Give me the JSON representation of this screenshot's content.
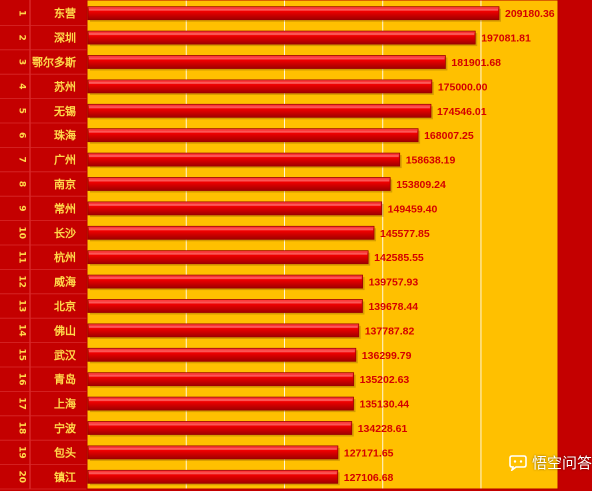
{
  "colors": {
    "frame": "#c40000",
    "plot_bg": "#ffc000",
    "bar_main": "#e80000",
    "bar_light": "#ff3b3b",
    "bar_dark": "#9a0000",
    "label_text": "#ffd84a",
    "value_text": "#d40000"
  },
  "chart_data": {
    "type": "bar",
    "orientation": "horizontal",
    "grid": true,
    "xlim": [
      0,
      250000
    ],
    "ranks": [
      "1",
      "2",
      "3",
      "4",
      "5",
      "6",
      "7",
      "8",
      "9",
      "10",
      "11",
      "12",
      "13",
      "14",
      "15",
      "16",
      "17",
      "18",
      "19",
      "20"
    ],
    "categories": [
      "东营",
      "深圳",
      "鄂尔多斯",
      "苏州",
      "无锡",
      "珠海",
      "广州",
      "南京",
      "常州",
      "长沙",
      "杭州",
      "威海",
      "北京",
      "佛山",
      "武汉",
      "青岛",
      "上海",
      "宁波",
      "包头",
      "镇江"
    ],
    "values": [
      209180.36,
      197081.81,
      181901.68,
      175000.0,
      174546.01,
      168007.25,
      158638.19,
      153809.24,
      149459.4,
      145577.85,
      142585.55,
      139757.93,
      139678.44,
      137787.82,
      136299.79,
      135202.63,
      135130.44,
      134228.61,
      127171.65,
      127106.68
    ],
    "value_labels": [
      "209180.36",
      "197081.81",
      "181901.68",
      "175000.00",
      "174546.01",
      "168007.25",
      "158638.19",
      "153809.24",
      "149459.40",
      "145577.85",
      "142585.55",
      "139757.93",
      "139678.44",
      "137787.82",
      "136299.79",
      "135202.63",
      "135130.44",
      "134228.61",
      "127171.65",
      "127106.68"
    ]
  },
  "watermark": {
    "icon": "speech-bubble-icon",
    "text": "悟空问答"
  }
}
